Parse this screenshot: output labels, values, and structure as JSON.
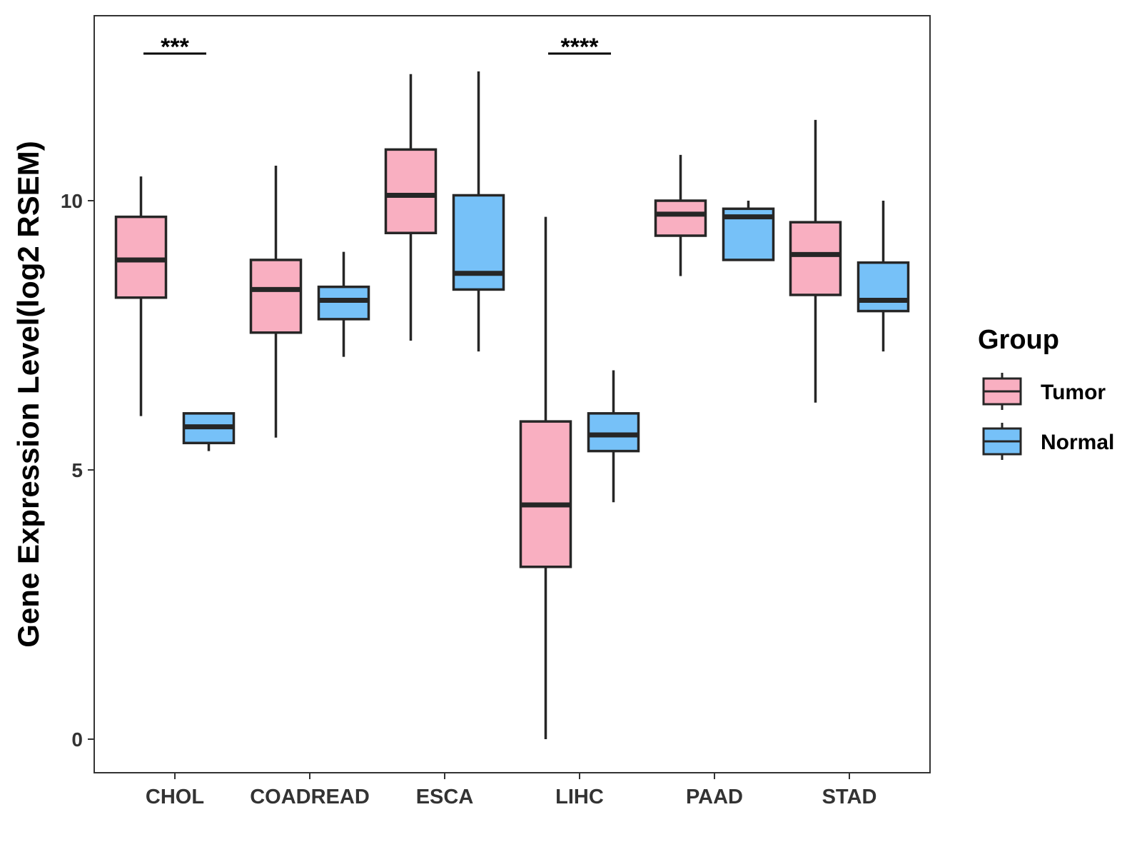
{
  "chart_data": {
    "type": "boxplot",
    "ylabel": "Gene Expression Level(log2 RSEM)",
    "xlabel": "",
    "ylim": [
      -0.6,
      13.4
    ],
    "yticks": [
      0,
      5,
      10
    ],
    "ytick_labels": [
      "0",
      "5",
      "10"
    ],
    "categories": [
      "CHOL",
      "COADREAD",
      "ESCA",
      "LIHC",
      "PAAD",
      "STAD"
    ],
    "legend": {
      "title": "Group",
      "position": "right",
      "entries": [
        {
          "name": "Tumor",
          "color": "#F9AFC1"
        },
        {
          "name": "Normal",
          "color": "#76C1F8"
        }
      ]
    },
    "series": [
      {
        "name": "Tumor",
        "color": "#F9AFC1",
        "boxes": [
          {
            "category": "CHOL",
            "min": 6.0,
            "q1": 8.2,
            "median": 8.9,
            "q3": 9.7,
            "max": 10.45
          },
          {
            "category": "COADREAD",
            "min": 5.6,
            "q1": 7.55,
            "median": 8.35,
            "q3": 8.9,
            "max": 10.65
          },
          {
            "category": "ESCA",
            "min": 7.4,
            "q1": 9.4,
            "median": 10.1,
            "q3": 10.95,
            "max": 12.35
          },
          {
            "category": "LIHC",
            "min": 0.0,
            "q1": 3.2,
            "median": 4.35,
            "q3": 5.9,
            "max": 9.7
          },
          {
            "category": "PAAD",
            "min": 8.6,
            "q1": 9.35,
            "median": 9.75,
            "q3": 10.0,
            "max": 10.85
          },
          {
            "category": "STAD",
            "min": 6.25,
            "q1": 8.25,
            "median": 9.0,
            "q3": 9.6,
            "max": 11.5
          }
        ]
      },
      {
        "name": "Normal",
        "color": "#76C1F8",
        "boxes": [
          {
            "category": "CHOL",
            "min": 5.35,
            "q1": 5.5,
            "median": 5.8,
            "q3": 6.05,
            "max": 6.05
          },
          {
            "category": "COADREAD",
            "min": 7.1,
            "q1": 7.8,
            "median": 8.15,
            "q3": 8.4,
            "max": 9.05
          },
          {
            "category": "ESCA",
            "min": 7.2,
            "q1": 8.35,
            "median": 8.65,
            "q3": 10.1,
            "max": 12.4
          },
          {
            "category": "LIHC",
            "min": 4.4,
            "q1": 5.35,
            "median": 5.65,
            "q3": 6.05,
            "max": 6.85
          },
          {
            "category": "PAAD",
            "min": 8.9,
            "q1": 8.9,
            "median": 9.7,
            "q3": 9.85,
            "max": 10.0
          },
          {
            "category": "STAD",
            "min": 7.2,
            "q1": 7.95,
            "median": 8.15,
            "q3": 8.85,
            "max": 10.0
          }
        ]
      }
    ],
    "annotations": [
      {
        "category": "CHOL",
        "label": "***"
      },
      {
        "category": "LIHC",
        "label": "****"
      }
    ]
  }
}
